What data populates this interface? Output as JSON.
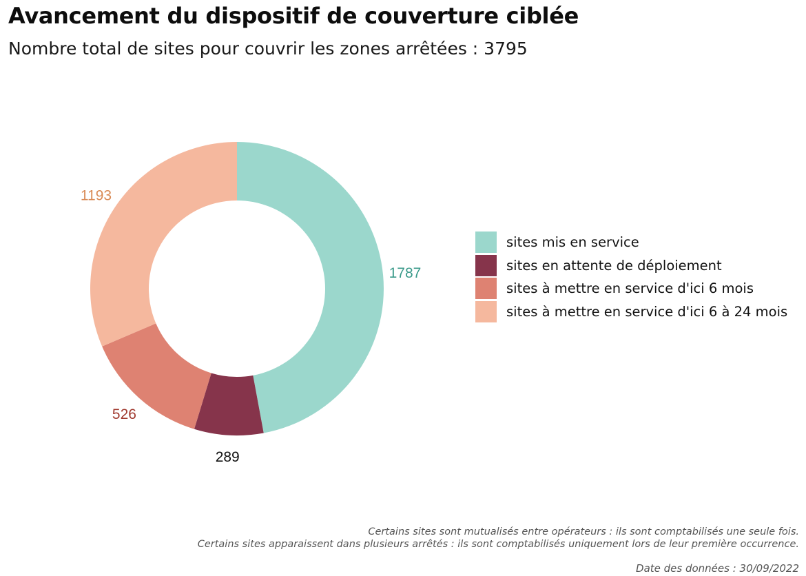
{
  "title": "Avancement du dispositif de couverture ciblée",
  "subtitle": "Nombre total de sites pour couvrir les zones arrêtées : 3795",
  "chart_data": {
    "type": "pie",
    "variant": "donut",
    "total": 3795,
    "slices": [
      {
        "label": "sites mis en service",
        "value": 1787,
        "color": "#9bd7cc",
        "label_color": "#3a9a8a"
      },
      {
        "label": "sites en attente de déploiement",
        "value": 289,
        "color": "#86344b",
        "label_color": "#111111"
      },
      {
        "label": "sites à mettre en service d'ici 6 mois",
        "value": 526,
        "color": "#de8272",
        "label_color": "#a0392e"
      },
      {
        "label": "sites à mettre en service d'ici 6 à 24 mois",
        "value": 1193,
        "color": "#f5b89e",
        "label_color": "#d98a55"
      }
    ],
    "legend_position": "right"
  },
  "notes": {
    "line1": "Certains sites sont mutualisés entre opérateurs : ils sont comptabilisés une seule fois.",
    "line2": "Certains sites apparaissent dans plusieurs arrêtés : ils sont comptabilisés uniquement lors de leur première occurrence.",
    "date": "Date des données : 30/09/2022"
  }
}
